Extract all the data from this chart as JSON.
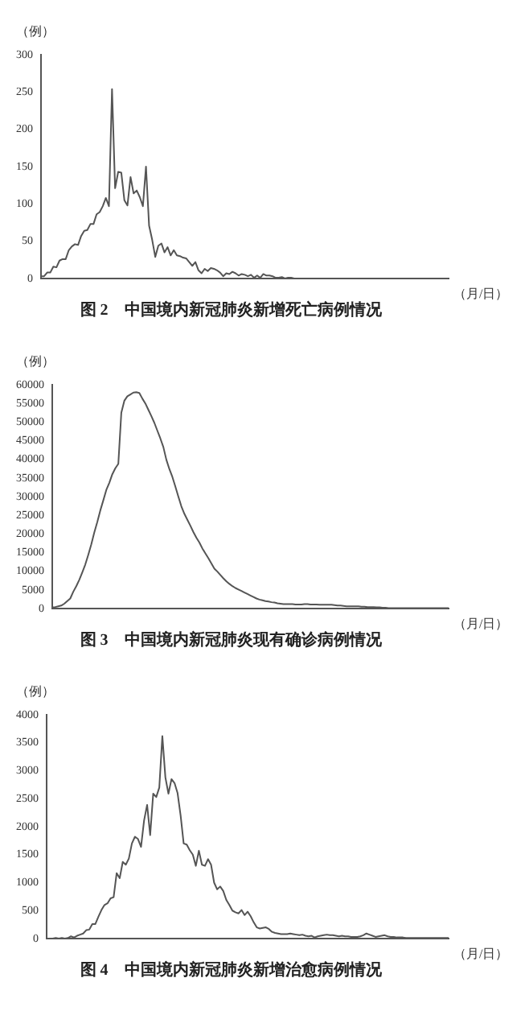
{
  "chart_data": [
    {
      "type": "line",
      "title": "图 2　中国境内新冠肺炎新增死亡病例情况",
      "ylabel": "（例）",
      "xlabel": "（月/日）",
      "ylim": [
        0,
        300
      ],
      "yticks": [
        0,
        50,
        100,
        150,
        200,
        250,
        300
      ],
      "tick_labels": "y",
      "marker": "none",
      "line_style": "solid",
      "categories": [
        null,
        null,
        null,
        null,
        null,
        null,
        null,
        null,
        null,
        null,
        null,
        null,
        null,
        null,
        null,
        null,
        null,
        null,
        null,
        null,
        null,
        null,
        null,
        null,
        null,
        null,
        null,
        null,
        null,
        null,
        null,
        null,
        null,
        null,
        null,
        null,
        null,
        null,
        null,
        null,
        null,
        null,
        null,
        null,
        null,
        null,
        null,
        null,
        null,
        null,
        null,
        null,
        null,
        null,
        null,
        null,
        null,
        null,
        null,
        null,
        null,
        null,
        null,
        null,
        null,
        null,
        null,
        null,
        null,
        null,
        null,
        null,
        null,
        null,
        null,
        null,
        null,
        null,
        null,
        null,
        null,
        null,
        null,
        null,
        null,
        null,
        null,
        null,
        null,
        null,
        null,
        null,
        null,
        null,
        null,
        null,
        null,
        null,
        null,
        null,
        null,
        null,
        null,
        null,
        null,
        null,
        null,
        null,
        null,
        null,
        null,
        null,
        null,
        null,
        null,
        null,
        null,
        null,
        null,
        null,
        null,
        null,
        null,
        null,
        null,
        null,
        null,
        null,
        null,
        null,
        null,
        null,
        null
      ],
      "series": [
        {
          "color": "#555555",
          "values": [
            3,
            3,
            8,
            8,
            16,
            15,
            24,
            26,
            26,
            38,
            43,
            46,
            45,
            57,
            64,
            65,
            73,
            73,
            86,
            89,
            97,
            108,
            97,
            254,
            121,
            143,
            142,
            105,
            98,
            136,
            114,
            118,
            109,
            97,
            150,
            71,
            52,
            29,
            44,
            47,
            35,
            42,
            31,
            38,
            31,
            30,
            28,
            27,
            22,
            17,
            22,
            11,
            7,
            13,
            10,
            14,
            13,
            11,
            8,
            3,
            7,
            6,
            9,
            7,
            4,
            6,
            5,
            3,
            5,
            1,
            4,
            1,
            6,
            4,
            4,
            3,
            1,
            1,
            2,
            0,
            1,
            1,
            0,
            0,
            0,
            0,
            0,
            0,
            0,
            0,
            0,
            0,
            0,
            0,
            0,
            0,
            0,
            0,
            0,
            0,
            0,
            0,
            0,
            0,
            0,
            0,
            0,
            0,
            0,
            0,
            0,
            0,
            0,
            0,
            0,
            0,
            0,
            0,
            0,
            0,
            0,
            0,
            0,
            0,
            0,
            0,
            0,
            0,
            0,
            0,
            0,
            0,
            0
          ]
        }
      ]
    },
    {
      "type": "line",
      "title": "图 3　中国境内新冠肺炎现有确诊病例情况",
      "ylabel": "（例）",
      "xlabel": "（月/日）",
      "ylim": [
        0,
        60000
      ],
      "yticks": [
        0,
        5000,
        10000,
        15000,
        20000,
        25000,
        30000,
        35000,
        40000,
        45000,
        50000,
        55000,
        60000
      ],
      "tick_labels": "y",
      "marker": "none",
      "line_style": "solid",
      "categories": [
        null,
        null,
        null,
        null,
        null,
        null,
        null,
        null,
        null,
        null,
        null,
        null,
        null,
        null,
        null,
        null,
        null,
        null,
        null,
        null,
        null,
        null,
        null,
        null,
        null,
        null,
        null,
        null,
        null,
        null,
        null,
        null,
        null,
        null,
        null,
        null,
        null,
        null,
        null,
        null,
        null,
        null,
        null,
        null,
        null,
        null,
        null,
        null,
        null,
        null,
        null,
        null,
        null,
        null,
        null,
        null,
        null,
        null,
        null,
        null,
        null,
        null,
        null,
        null,
        null,
        null,
        null,
        null,
        null,
        null,
        null,
        null,
        null,
        null,
        null,
        null,
        null,
        null,
        null,
        null,
        null,
        null,
        null,
        null,
        null,
        null,
        null,
        null,
        null,
        null,
        null,
        null,
        null,
        null,
        null,
        null,
        null,
        null,
        null,
        null,
        null,
        null,
        null,
        null,
        null,
        null,
        null,
        null,
        null,
        null,
        null,
        null,
        null,
        null,
        null,
        null,
        null,
        null,
        null,
        null,
        null,
        null,
        null,
        null,
        null,
        null,
        null,
        null,
        null,
        null,
        null,
        null,
        null
      ],
      "series": [
        {
          "color": "#555555",
          "values": [
            300,
            400,
            600,
            800,
            1300,
            2000,
            2700,
            4500,
            6000,
            7700,
            9700,
            11800,
            14400,
            17200,
            20400,
            23200,
            26300,
            29000,
            31800,
            33700,
            36000,
            37600,
            38800,
            52500,
            55700,
            56900,
            57400,
            57900,
            58000,
            57800,
            56300,
            55000,
            53300,
            51600,
            49800,
            47700,
            45600,
            43300,
            39900,
            37400,
            35300,
            32700,
            30000,
            27400,
            25400,
            23800,
            22200,
            20500,
            19000,
            17700,
            16100,
            14800,
            13500,
            12100,
            10700,
            9900,
            9000,
            8100,
            7300,
            6600,
            6000,
            5500,
            5100,
            4700,
            4300,
            3900,
            3500,
            3100,
            2700,
            2400,
            2200,
            2000,
            1900,
            1700,
            1600,
            1400,
            1300,
            1200,
            1200,
            1200,
            1200,
            1100,
            1100,
            1100,
            1200,
            1200,
            1100,
            1100,
            1100,
            1000,
            1000,
            1000,
            1000,
            1000,
            900,
            800,
            800,
            700,
            600,
            600,
            600,
            600,
            600,
            500,
            500,
            400,
            400,
            400,
            300,
            300,
            200,
            200,
            100,
            100,
            100,
            100,
            100,
            100,
            100,
            100,
            100,
            100,
            100,
            100,
            100,
            100,
            100,
            100,
            100,
            100,
            100,
            100,
            100
          ]
        }
      ]
    },
    {
      "type": "line",
      "title": "图 4　中国境内新冠肺炎新增治愈病例情况",
      "ylabel": "（例）",
      "xlabel": "（月/日）",
      "ylim": [
        0,
        4000
      ],
      "yticks": [
        0,
        500,
        1000,
        1500,
        2000,
        2500,
        3000,
        3500,
        4000
      ],
      "tick_labels": "y",
      "marker": "none",
      "line_style": "solid",
      "categories": [
        null,
        null,
        null,
        null,
        null,
        null,
        null,
        null,
        null,
        null,
        null,
        null,
        null,
        null,
        null,
        null,
        null,
        null,
        null,
        null,
        null,
        null,
        null,
        null,
        null,
        null,
        null,
        null,
        null,
        null,
        null,
        null,
        null,
        null,
        null,
        null,
        null,
        null,
        null,
        null,
        null,
        null,
        null,
        null,
        null,
        null,
        null,
        null,
        null,
        null,
        null,
        null,
        null,
        null,
        null,
        null,
        null,
        null,
        null,
        null,
        null,
        null,
        null,
        null,
        null,
        null,
        null,
        null,
        null,
        null,
        null,
        null,
        null,
        null,
        null,
        null,
        null,
        null,
        null,
        null,
        null,
        null,
        null,
        null,
        null,
        null,
        null,
        null,
        null,
        null,
        null,
        null,
        null,
        null,
        null,
        null,
        null,
        null,
        null,
        null,
        null,
        null,
        null,
        null,
        null,
        null,
        null,
        null,
        null,
        null,
        null,
        null,
        null,
        null,
        null,
        null,
        null,
        null,
        null,
        null,
        null,
        null,
        null,
        null,
        null,
        null,
        null,
        null,
        null,
        null,
        null,
        null,
        null
      ],
      "series": [
        {
          "color": "#555555",
          "values": [
            0,
            0,
            0,
            10,
            0,
            10,
            0,
            10,
            40,
            20,
            50,
            70,
            90,
            150,
            160,
            260,
            260,
            390,
            510,
            600,
            630,
            720,
            740,
            1170,
            1080,
            1370,
            1320,
            1430,
            1700,
            1820,
            1780,
            1640,
            2110,
            2390,
            1850,
            2590,
            2530,
            2700,
            3620,
            2880,
            2590,
            2850,
            2780,
            2600,
            2200,
            1700,
            1680,
            1580,
            1500,
            1300,
            1570,
            1320,
            1300,
            1420,
            1320,
            1000,
            880,
            930,
            850,
            690,
            600,
            500,
            470,
            450,
            510,
            420,
            480,
            400,
            290,
            200,
            180,
            190,
            200,
            170,
            120,
            100,
            90,
            80,
            80,
            80,
            90,
            80,
            70,
            60,
            70,
            50,
            40,
            50,
            20,
            40,
            50,
            60,
            70,
            60,
            60,
            50,
            40,
            50,
            40,
            40,
            30,
            30,
            30,
            40,
            60,
            90,
            70,
            50,
            30,
            40,
            50,
            60,
            40,
            30,
            30,
            20,
            20,
            20,
            10,
            10,
            10,
            10,
            10,
            10,
            10,
            10,
            10,
            10,
            10,
            10,
            10,
            10,
            10
          ]
        }
      ]
    }
  ]
}
